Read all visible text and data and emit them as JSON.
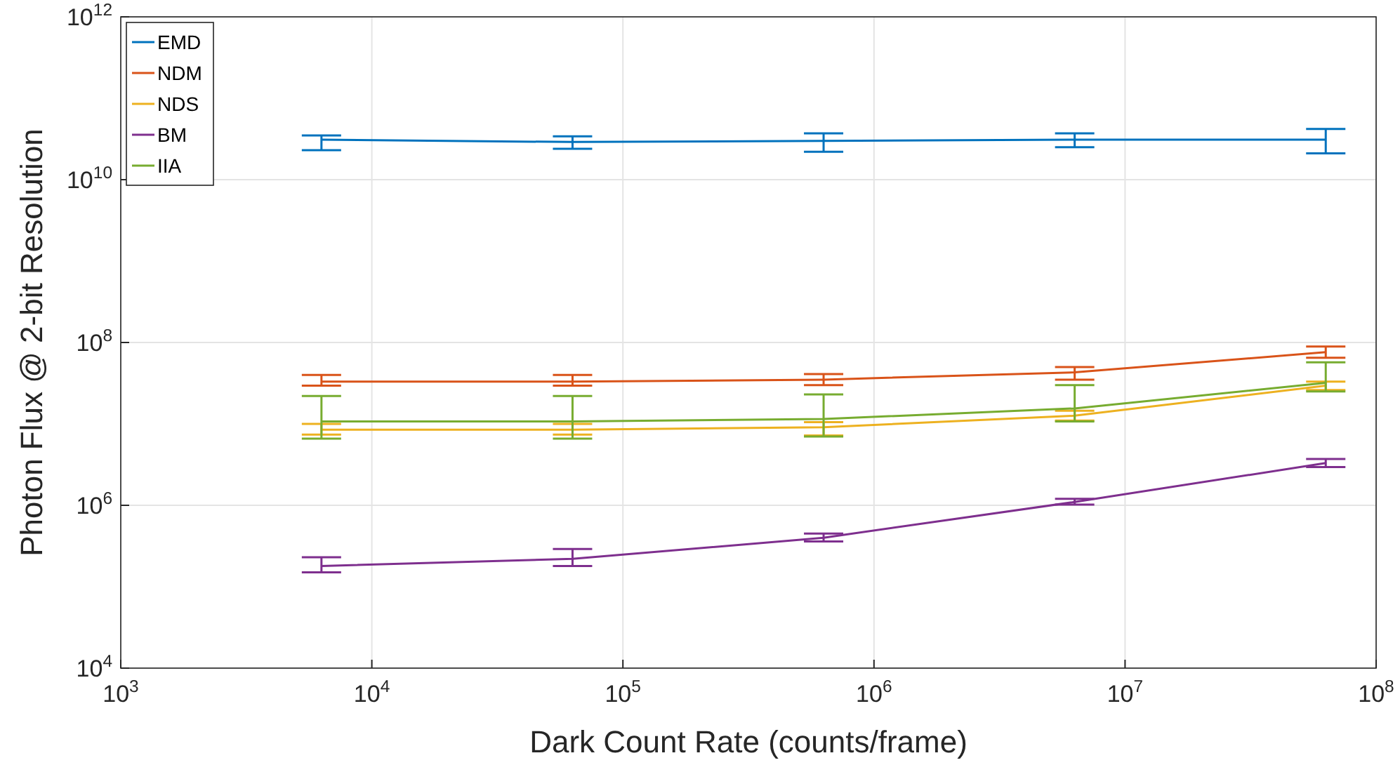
{
  "chart_data": {
    "type": "line",
    "xlabel": "Dark Count Rate (counts/frame)",
    "ylabel": "Photon Flux @ 2-bit Resolution",
    "log": "xy",
    "grid": true,
    "legend": "top left",
    "x": [
      6300,
      63000,
      630000,
      6300000,
      63000000
    ],
    "xlim": [
      1000,
      100000000
    ],
    "xticks": [
      {
        "value": 1000,
        "label": "10$^{3}$"
      },
      {
        "value": 10000,
        "label": "10$^{4}$"
      },
      {
        "value": 100000,
        "label": "10$^{5}$"
      },
      {
        "value": 1000000,
        "label": "10$^{6}$"
      },
      {
        "value": 10000000,
        "label": "10$^{7}$"
      },
      {
        "value": 100000000,
        "label": "10$^{8}$"
      }
    ],
    "ylim": [
      10000,
      1000000000000
    ],
    "yticks": [
      {
        "value": 10000,
        "label": "10$^{4}$"
      },
      {
        "value": 1000000,
        "label": "10$^{6}$"
      },
      {
        "value": 100000000,
        "label": "10$^{8}$"
      },
      {
        "value": 10000000000,
        "label": "10$^{10}$"
      },
      {
        "value": 1000000000000,
        "label": "10$^{12}$"
      }
    ],
    "series": [
      {
        "name": "EMD",
        "color": "#0072bd",
        "values": [
          31000000000,
          29000000000,
          30000000000,
          31000000000,
          31000000000
        ],
        "errors": [
          [
            23000000000,
            35000000000
          ],
          [
            24000000000,
            34000000000
          ],
          [
            22000000000,
            37000000000
          ],
          [
            25000000000,
            37000000000
          ],
          [
            21000000000,
            42000000000
          ]
        ]
      },
      {
        "name": "NDM",
        "color": "#d95319",
        "values": [
          33000000,
          33000000,
          35000000,
          43000000,
          76000000
        ],
        "errors": [
          [
            29500000,
            40000000
          ],
          [
            29500000,
            40000000
          ],
          [
            30000000,
            41000000
          ],
          [
            35000000,
            50000000
          ],
          [
            65000000,
            89000000
          ]
        ]
      },
      {
        "name": "NDS",
        "color": "#edb120",
        "values": [
          8500000,
          8500000,
          9100000,
          12600000,
          29500000
        ],
        "errors": [
          [
            7400000,
            10000000
          ],
          [
            7400000,
            10000000
          ],
          [
            7200000,
            10500000
          ],
          [
            11000000,
            14500000
          ],
          [
            26000000,
            33000000
          ]
        ]
      },
      {
        "name": "BM",
        "color": "#7e2f8e",
        "values": [
          180000,
          220000,
          400000,
          1100000,
          3300000
        ],
        "errors": [
          [
            150000,
            230000
          ],
          [
            180000,
            290000
          ],
          [
            360000,
            450000
          ],
          [
            1020000,
            1200000
          ],
          [
            2950000,
            3700000
          ]
        ]
      },
      {
        "name": "IIA",
        "color": "#77ac30",
        "values": [
          10700000,
          10700000,
          11500000,
          15500000,
          32000000
        ],
        "errors": [
          [
            6600000,
            22000000
          ],
          [
            6600000,
            22000000
          ],
          [
            7000000,
            23000000
          ],
          [
            10700000,
            30000000
          ],
          [
            25000000,
            57000000
          ]
        ]
      }
    ]
  }
}
